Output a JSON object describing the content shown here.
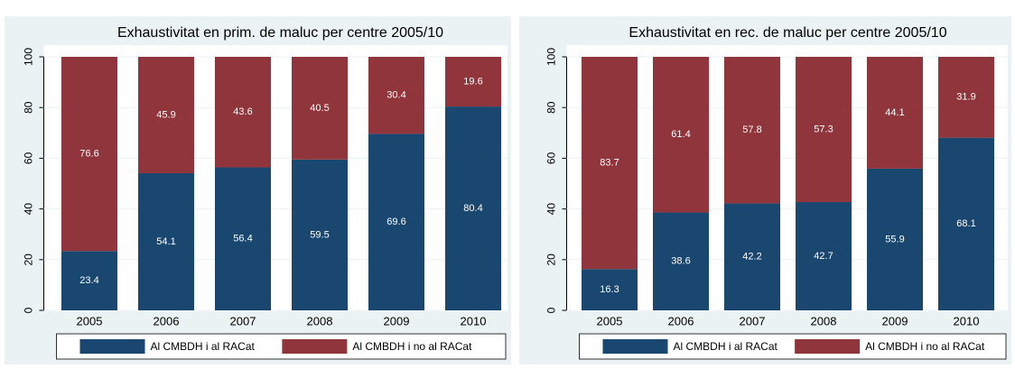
{
  "chart_data": [
    {
      "type": "stacked_bar",
      "title": "Exhaustivitat en prim. de maluc per centre 2005/10",
      "categories": [
        "2005",
        "2006",
        "2007",
        "2008",
        "2009",
        "2010"
      ],
      "series": [
        {
          "name": "Al CMBDH i al RACat",
          "color": "#1a476f",
          "values": [
            23.4,
            54.1,
            56.4,
            59.5,
            69.6,
            80.4
          ]
        },
        {
          "name": "Al CMBDH i no al RACat",
          "color": "#90353b",
          "values": [
            76.6,
            45.9,
            43.6,
            40.5,
            30.4,
            19.6
          ]
        }
      ],
      "ylim": [
        0,
        100
      ],
      "yticks": [
        0,
        20,
        40,
        60,
        80,
        100
      ],
      "grid": true
    },
    {
      "type": "stacked_bar",
      "title": "Exhaustivitat en rec. de maluc per centre 2005/10",
      "categories": [
        "2005",
        "2006",
        "2007",
        "2008",
        "2009",
        "2010"
      ],
      "series": [
        {
          "name": "Al CMBDH i al RACat",
          "color": "#1a476f",
          "values": [
            16.3,
            38.6,
            42.2,
            42.7,
            55.9,
            68.1
          ]
        },
        {
          "name": "Al CMBDH i no al RACat",
          "color": "#90353b",
          "values": [
            83.7,
            61.4,
            57.8,
            57.3,
            44.1,
            31.9
          ]
        }
      ],
      "ylim": [
        0,
        100
      ],
      "yticks": [
        0,
        20,
        40,
        60,
        80,
        100
      ],
      "grid": true
    }
  ]
}
